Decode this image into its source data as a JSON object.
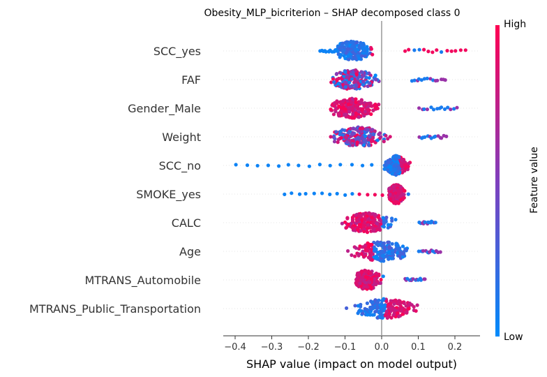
{
  "chart_data": {
    "type": "scatter",
    "subtype": "shap-beeswarm",
    "title": "Obesity_MLP_bicriterion – SHAP decomposed class 0",
    "xlabel": "SHAP value (impact on model output)",
    "xlim": [
      -0.43,
      0.27
    ],
    "xticks": [
      -0.4,
      -0.3,
      -0.2,
      -0.1,
      0.0,
      0.1,
      0.2
    ],
    "xtick_labels": [
      "−0.4",
      "−0.3",
      "−0.2",
      "−0.1",
      "0.0",
      "0.1",
      "0.2"
    ],
    "colorbar": {
      "label": "Feature value",
      "high": "High",
      "low": "Low"
    },
    "colors": {
      "low": "#008bfb",
      "mid": "#7f3fbd",
      "high": "#ff0052"
    },
    "features": [
      {
        "name": "SCC_yes",
        "dense": [
          -0.12,
          0.06,
          -0.08
        ],
        "tail_left": -0.17,
        "tail_right": 0.24,
        "high_side": "right"
      },
      {
        "name": "FAF",
        "dense": [
          -0.14,
          0.08,
          -0.08
        ],
        "tail_left": -0.14,
        "tail_right": 0.18,
        "high_side": "mixed"
      },
      {
        "name": "Gender_Male",
        "dense": [
          -0.14,
          0.1,
          -0.08
        ],
        "tail_left": -0.14,
        "tail_right": 0.21,
        "high_side": "left"
      },
      {
        "name": "Weight",
        "dense": [
          -0.15,
          0.1,
          -0.06
        ],
        "tail_left": -0.15,
        "tail_right": 0.18,
        "high_side": "mixed"
      },
      {
        "name": "SCC_no",
        "dense": [
          0.0,
          0.1,
          0.04
        ],
        "tail_left": -0.4,
        "tail_right": 0.1,
        "high_side": "right"
      },
      {
        "name": "SMOKE_yes",
        "dense": [
          0.02,
          0.1,
          0.04
        ],
        "tail_left": -0.27,
        "tail_right": 0.1,
        "high_side": "left"
      },
      {
        "name": "CALC",
        "dense": [
          -0.12,
          0.1,
          -0.04
        ],
        "tail_left": -0.12,
        "tail_right": 0.15,
        "high_side": "left"
      },
      {
        "name": "Age",
        "dense": [
          -0.17,
          0.1,
          0.0
        ],
        "tail_left": -0.17,
        "tail_right": 0.16,
        "high_side": "left"
      },
      {
        "name": "MTRANS_Automobile",
        "dense": [
          -0.07,
          0.06,
          -0.04
        ],
        "tail_left": -0.07,
        "tail_right": 0.12,
        "high_side": "left"
      },
      {
        "name": "MTRANS_Public_Transportation",
        "dense": [
          -0.12,
          0.14,
          0.01
        ],
        "tail_left": -0.12,
        "tail_right": 0.14,
        "high_side": "right"
      }
    ]
  }
}
